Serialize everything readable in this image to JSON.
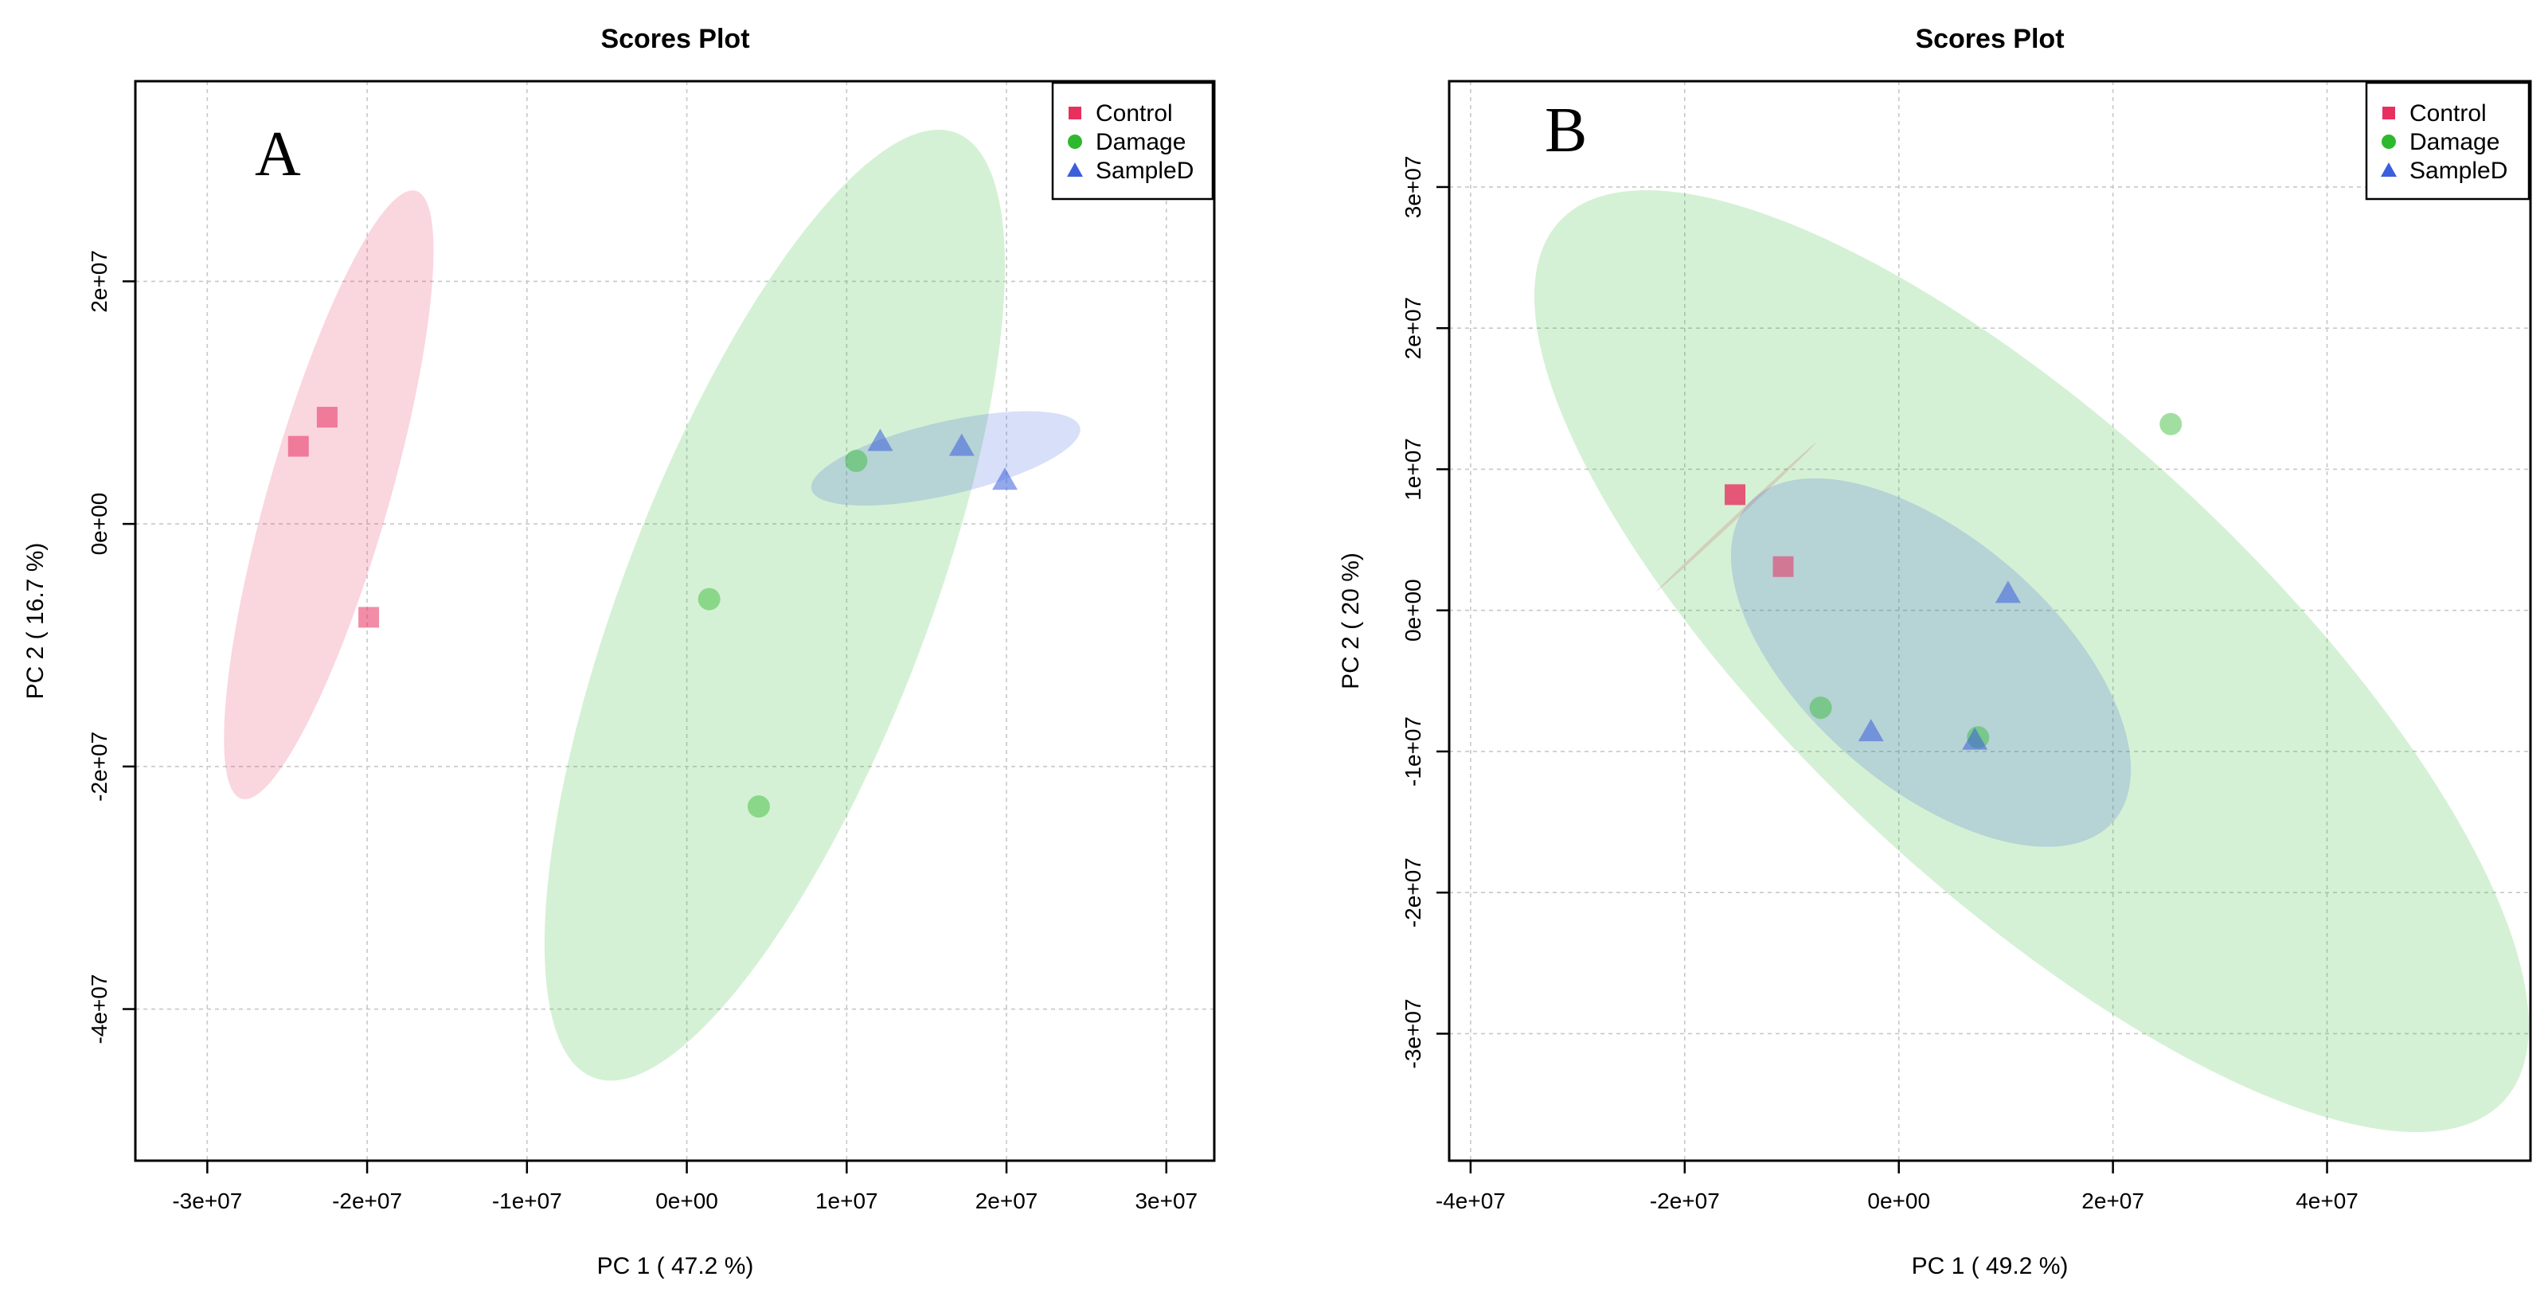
{
  "chart_data": [
    {
      "type": "scatter",
      "panel_label": "A",
      "title": "Scores Plot",
      "xlabel": "PC 1 ( 47.2 %)",
      "ylabel": "PC 2 ( 16.7 %)",
      "xlim": [
        -34500000,
        33000000
      ],
      "ylim": [
        -52500000,
        36500000
      ],
      "xticks": [
        -30000000,
        -20000000,
        -10000000,
        0,
        10000000,
        20000000,
        30000000
      ],
      "xtick_labels": [
        "-3e+07",
        "-2e+07",
        "-1e+07",
        "0e+00",
        "1e+07",
        "2e+07",
        "3e+07"
      ],
      "yticks": [
        -40000000,
        -20000000,
        0,
        20000000
      ],
      "ytick_labels": [
        "-4e+07",
        "-2e+07",
        "0e+00",
        "2e+07"
      ],
      "grid": true,
      "legend_position": "top-right",
      "series": [
        {
          "name": "Control",
          "marker": "square",
          "color": "#e8305f",
          "points": [
            [
              -24300000,
              6400000
            ],
            [
              -22500000,
              8800000
            ],
            [
              -19900000,
              -7700000
            ]
          ],
          "ellipse": {
            "cx": -22400000,
            "cy": 2400000,
            "rx": 22500000,
            "ry": 4300000,
            "angle": -74
          }
        },
        {
          "name": "Damage",
          "marker": "circle",
          "color": "#2eb82e",
          "points": [
            [
              10600000,
              5200000
            ],
            [
              1400000,
              -6200000
            ],
            [
              4500000,
              -23300000
            ]
          ],
          "ellipse": {
            "cx": 5500000,
            "cy": -6700000,
            "rx": 36000000,
            "ry": 10800000,
            "angle": -69
          }
        },
        {
          "name": "SampleD",
          "marker": "triangle",
          "color": "#3b5fdc",
          "points": [
            [
              12100000,
              6800000
            ],
            [
              17200000,
              6400000
            ],
            [
              19900000,
              3600000
            ]
          ],
          "ellipse": {
            "cx": 16200000,
            "cy": 5400000,
            "rx": 9800000,
            "ry": 2600000,
            "angle": -13
          }
        }
      ]
    },
    {
      "type": "scatter",
      "panel_label": "B",
      "title": "Scores Plot",
      "xlabel": "PC 1 ( 49.2 %)",
      "ylabel": "PC 2 ( 20 %)",
      "xlim": [
        -42000000,
        59000000
      ],
      "ylim": [
        -39000000,
        37500000
      ],
      "xticks": [
        -40000000,
        -20000000,
        0,
        20000000,
        40000000
      ],
      "xtick_labels": [
        "-4e+07",
        "-2e+07",
        "0e+00",
        "2e+07",
        "4e+07"
      ],
      "yticks": [
        -30000000,
        -20000000,
        -10000000,
        0,
        10000000,
        20000000,
        30000000
      ],
      "ytick_labels": [
        "-3e+07",
        "-2e+07",
        "-1e+07",
        "0e+00",
        "1e+07",
        "2e+07",
        "3e+07"
      ],
      "grid": true,
      "legend_position": "top-right",
      "series": [
        {
          "name": "Control",
          "marker": "square",
          "color": "#e8305f",
          "points": [
            [
              -15300000,
              8200000
            ],
            [
              -15300000,
              8200000
            ],
            [
              -10800000,
              3100000
            ]
          ],
          "ellipse": {
            "cx": -15200000,
            "cy": 6600000,
            "rx": 8800000,
            "ry": 150000,
            "angle": -43
          }
        },
        {
          "name": "Damage",
          "marker": "circle",
          "color": "#2eb82e",
          "points": [
            [
              25400000,
              13200000
            ],
            [
              -7300000,
              -6900000
            ],
            [
              7400000,
              -9000000
            ]
          ],
          "ellipse": {
            "cx": 12400000,
            "cy": -3600000,
            "rx": 52000000,
            "ry": 18500000,
            "angle": 43
          }
        },
        {
          "name": "SampleD",
          "marker": "triangle",
          "color": "#3b5fdc",
          "points": [
            [
              10200000,
              1200000
            ],
            [
              -2600000,
              -8600000
            ],
            [
              7100000,
              -9200000
            ]
          ],
          "ellipse": {
            "cx": 3000000,
            "cy": -3700000,
            "rx": 19500000,
            "ry": 10000000,
            "angle": 41
          }
        }
      ]
    }
  ]
}
